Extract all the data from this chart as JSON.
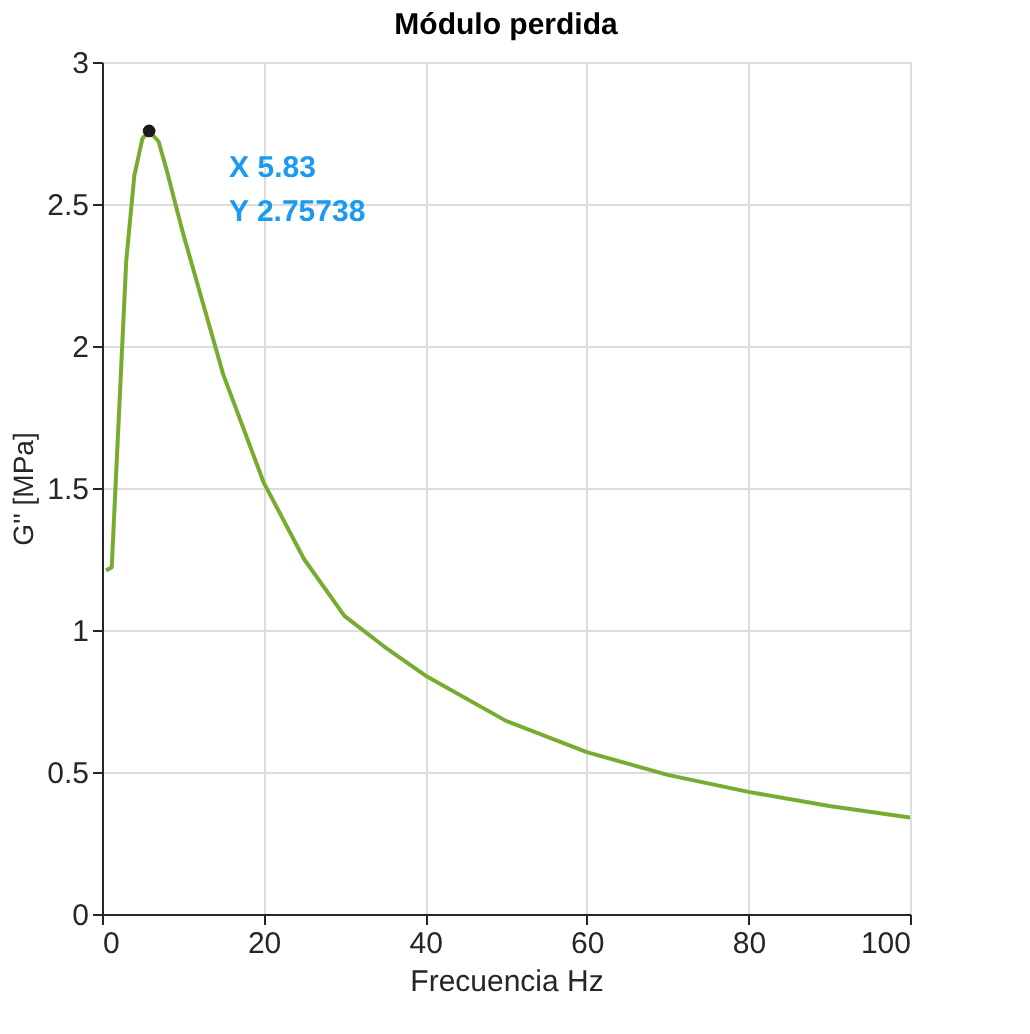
{
  "chart_data": {
    "type": "line",
    "title": "Módulo perdida",
    "xlabel": "Frecuencia Hz",
    "ylabel": "G'' [MPa]",
    "x": [
      0.5,
      1.2,
      2,
      3,
      4,
      5,
      5.83,
      7,
      8,
      10,
      12,
      15,
      20,
      25,
      30,
      35,
      40,
      50,
      60,
      70,
      80,
      90,
      100
    ],
    "series": [
      {
        "color": "#77ac30",
        "values": [
          1.21,
          1.22,
          1.7,
          2.3,
          2.6,
          2.73,
          2.757,
          2.72,
          2.62,
          2.4,
          2.2,
          1.9,
          1.52,
          1.25,
          1.05,
          0.94,
          0.84,
          0.68,
          0.57,
          0.49,
          0.43,
          0.38,
          0.34
        ]
      }
    ],
    "xlim": [
      0,
      100
    ],
    "xticks": [
      0,
      20,
      40,
      60,
      80,
      100
    ],
    "ylim": [
      0,
      3
    ],
    "yticks": [
      0,
      0.5,
      1,
      1.5,
      2,
      2.5,
      3
    ],
    "grid": true,
    "marker": "none",
    "line_style": "solid",
    "annotations": [
      {
        "text": "X 5.83\nY 2.75738",
        "x": 5.83,
        "y": 2.75738
      }
    ]
  }
}
